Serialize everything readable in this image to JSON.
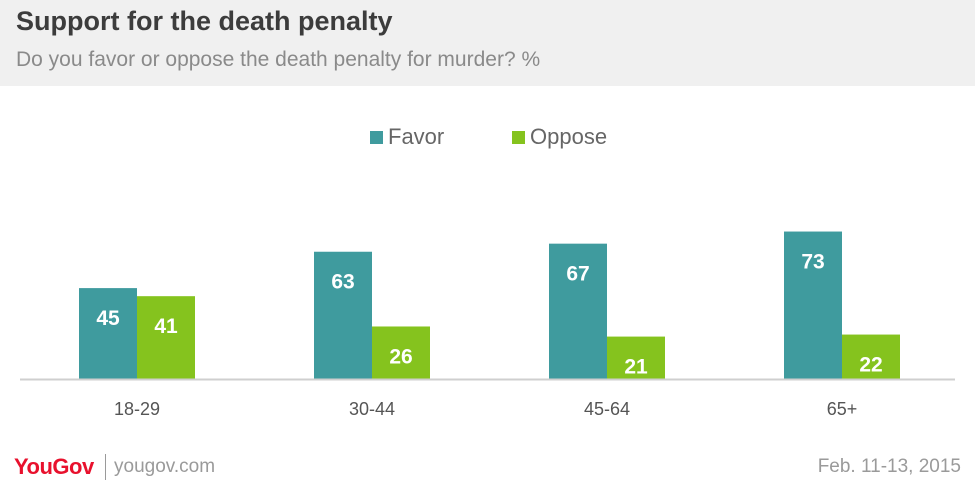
{
  "header": {
    "title": "Support for the death penalty",
    "subtitle": "Do you favor or oppose the death penalty for murder? %"
  },
  "colors": {
    "favor": "#3f9b9e",
    "oppose": "#85c31e",
    "axis": "#cfcfcf",
    "tick_text": "#555555",
    "label_text": "#ffffff"
  },
  "chart_data": {
    "type": "bar",
    "categories": [
      "18-29",
      "30-44",
      "45-64",
      "65+"
    ],
    "series": [
      {
        "name": "Favor",
        "values": [
          45,
          63,
          67,
          73
        ]
      },
      {
        "name": "Oppose",
        "values": [
          41,
          26,
          21,
          22
        ]
      }
    ],
    "title": "Support for the death penalty",
    "subtitle": "Do you favor or oppose the death penalty for murder? %",
    "xlabel": "",
    "ylabel": "",
    "ylim": [
      0,
      100
    ],
    "grid": false,
    "legend": "top-center",
    "data_labels": true
  },
  "footer": {
    "logo": "YouGov",
    "site": "yougov.com",
    "date": "Feb. 11-13, 2015"
  }
}
